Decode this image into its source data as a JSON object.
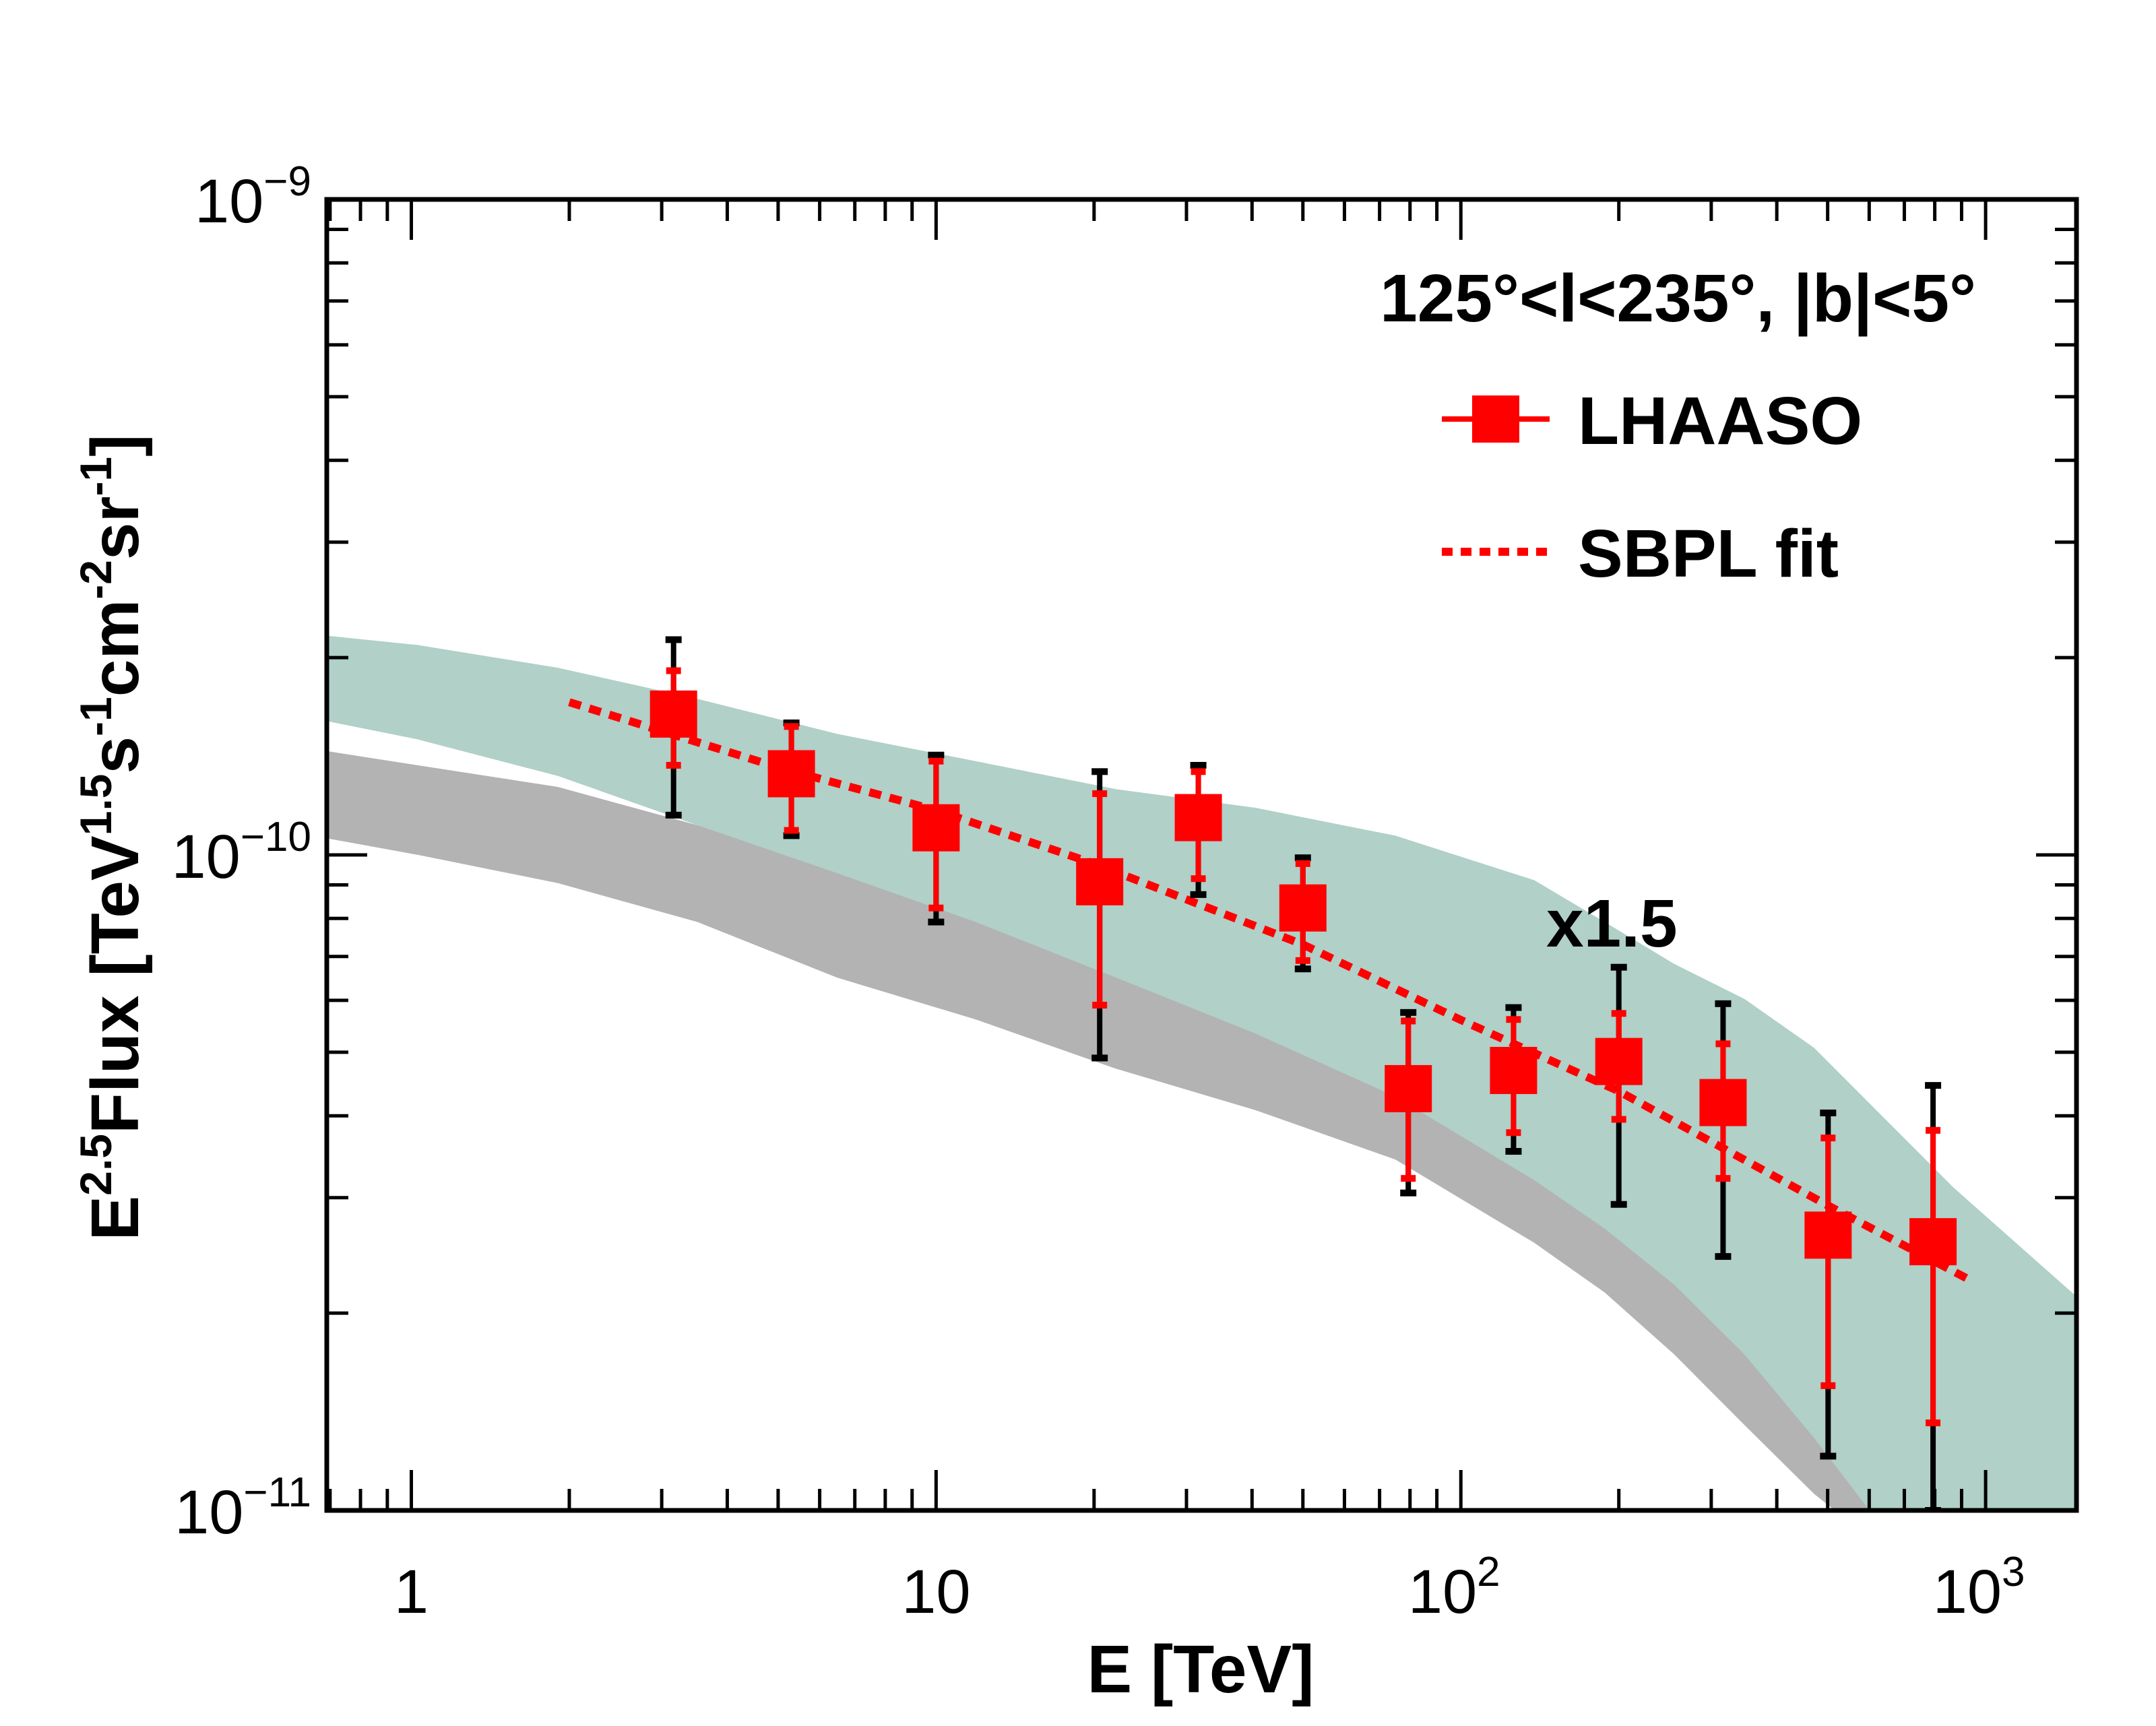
{
  "chart_data": {
    "type": "scatter",
    "title": "",
    "xlabel": "E [TeV]",
    "ylabel": {
      "base": "E",
      "sup1": "2.5",
      "mid": "Flux [TeV",
      "sup2": "1.5",
      "s": "s",
      "sup3": "-1",
      "cm": "cm",
      "sup4": "-2",
      "sr": "sr",
      "sup5": "-1",
      "end": "]"
    },
    "xscale": "log",
    "yscale": "log",
    "xlim": [
      0.69,
      1490
    ],
    "ylim": [
      1e-11,
      1e-09
    ],
    "grid": false,
    "x_ticks": [
      {
        "value": 1,
        "base": "1",
        "exp": ""
      },
      {
        "value": 10,
        "base": "10",
        "exp": ""
      },
      {
        "value": 100,
        "base": "10",
        "exp": "2"
      },
      {
        "value": 1000,
        "base": "10",
        "exp": "3"
      }
    ],
    "y_ticks": [
      {
        "value": 1e-09,
        "base": "10",
        "exp": "−9"
      },
      {
        "value": 1e-10,
        "base": "10",
        "exp": "−10"
      },
      {
        "value": 1e-11,
        "base": "10",
        "exp": "−11"
      }
    ],
    "annotation_region": "125°<l<235°, |b|<5°",
    "annotation_scale": "x1.5",
    "legend": {
      "position": "top-right",
      "entries": [
        "LHAASO",
        "SBPL fit"
      ]
    },
    "colors": {
      "data": "#ff0000",
      "syst": "#000000",
      "fit": "#ff0000",
      "band_model_scaled": "#b0d0c8",
      "band_model": "#b3b3b3"
    },
    "series": [
      {
        "name": "LHAASO",
        "x": [
          3.16,
          5.3,
          10.0,
          20.5,
          31.6,
          50.0,
          79.4,
          126,
          200,
          316,
          501,
          794
        ],
        "y": [
          1.64e-10,
          1.33e-10,
          1.1e-10,
          9.1e-11,
          1.14e-10,
          8.3e-11,
          4.4e-11,
          4.69e-11,
          4.84e-11,
          4.19e-11,
          2.63e-11,
          2.57e-11
        ],
        "stat_err_low": [
          1.37e-10,
          1.09e-10,
          8.3e-11,
          5.9e-11,
          9.2e-11,
          6.9e-11,
          3.21e-11,
          3.77e-11,
          3.95e-11,
          3.21e-11,
          1.55e-11,
          1.36e-11
        ],
        "stat_err_high": [
          1.91e-10,
          1.57e-10,
          1.39e-10,
          1.24e-10,
          1.34e-10,
          9.7e-11,
          5.58e-11,
          5.61e-11,
          5.73e-11,
          5.15e-11,
          3.7e-11,
          3.8e-11
        ],
        "total_err_low": [
          1.15e-10,
          1.07e-10,
          7.9e-11,
          4.9e-11,
          8.7e-11,
          6.7e-11,
          3.05e-11,
          3.53e-11,
          2.93e-11,
          2.44e-11,
          1.21e-11,
          1e-11
        ],
        "total_err_high": [
          2.13e-10,
          1.59e-10,
          1.42e-10,
          1.34e-10,
          1.37e-10,
          9.9e-11,
          5.75e-11,
          5.85e-11,
          6.74e-11,
          5.93e-11,
          4.04e-11,
          4.45e-11
        ]
      },
      {
        "name": "SBPL fit",
        "x": [
          2.0,
          5.0,
          10,
          20,
          50,
          100,
          200,
          500,
          950
        ],
        "y": [
          1.71e-10,
          1.36e-10,
          1.17e-10,
          9.7e-11,
          7.3e-11,
          5.6e-11,
          4.36e-11,
          2.92e-11,
          2.23e-11
        ]
      }
    ],
    "bands": [
      {
        "label": "x1.5",
        "x_upper": [
          0.69,
          1.03,
          1.9,
          3.51,
          6.47,
          11.9,
          22.0,
          40.6,
          75.0,
          138,
          188,
          255,
          347,
          471,
          868,
          1490
        ],
        "y_upper": [
          2.16e-10,
          2.09e-10,
          1.93e-10,
          1.73e-10,
          1.53e-10,
          1.39e-10,
          1.26e-10,
          1.18e-10,
          1.07e-10,
          9.15e-11,
          7.9e-11,
          6.82e-11,
          6.03e-11,
          5.08e-11,
          3.11e-11,
          2.12e-11
        ],
        "x_lower": [
          0.69,
          1.03,
          1.9,
          3.51,
          6.47,
          11.9,
          22.0,
          40.6,
          75.0,
          138,
          188,
          255,
          347,
          471,
          601,
          1490
        ],
        "y_lower": [
          1.6e-10,
          1.5e-10,
          1.32e-10,
          1.11e-10,
          9.38e-11,
          7.9e-11,
          6.5e-11,
          5.34e-11,
          4.28e-11,
          3.19e-11,
          2.69e-11,
          2.21e-11,
          1.73e-11,
          1.29e-11,
          1e-11,
          1e-11
        ]
      },
      {
        "label": "",
        "x_upper": [
          0.69,
          1.03,
          1.9,
          3.51,
          6.47,
          11.9,
          22.0,
          40.6,
          75.0,
          138,
          188,
          255,
          347,
          471,
          601,
          680
        ],
        "y_upper": [
          1.44e-10,
          1.37e-10,
          1.27e-10,
          1.11e-10,
          9.85e-11,
          8.5e-11,
          7.52e-11,
          6.5e-11,
          5.47e-11,
          4.18e-11,
          3.52e-11,
          2.82e-11,
          2.15e-11,
          1.49e-11,
          1.11e-11,
          1e-11
        ],
        "x_lower": [
          0.69,
          1.03,
          1.9,
          3.51,
          6.47,
          11.9,
          22.0,
          40.6,
          75.0,
          138,
          188,
          255,
          347,
          471,
          516
        ],
        "y_lower": [
          1.06e-10,
          1e-10,
          9.06e-11,
          7.9e-11,
          6.5e-11,
          5.61e-11,
          4.72e-11,
          4.08e-11,
          3.43e-11,
          2.56e-11,
          2.15e-11,
          1.73e-11,
          1.35e-11,
          1.06e-11,
          1e-11
        ]
      }
    ]
  }
}
